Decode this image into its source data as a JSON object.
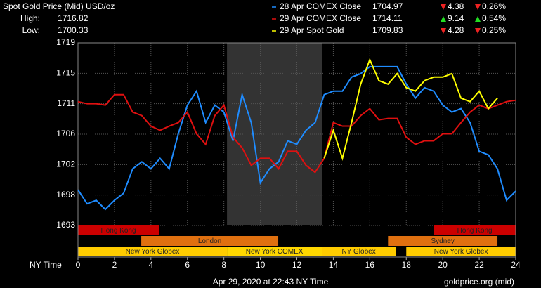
{
  "chart_data": {
    "type": "line",
    "title": "Spot Gold Price (Mid) USD/oz",
    "high_label": "High:",
    "high": 1716.82,
    "low_label": "Low:",
    "low": 1700.33,
    "xlabel": "NY Time",
    "footer": "Apr 29, 2020 at 22:43 NY Time",
    "source": "goldprice.org (mid)",
    "x": [
      0,
      0.5,
      1,
      1.5,
      2,
      2.5,
      3,
      3.5,
      4,
      4.5,
      5,
      5.5,
      6,
      6.5,
      7,
      7.5,
      8,
      8.5,
      9,
      9.5,
      10,
      10.5,
      11,
      11.5,
      12,
      12.5,
      13,
      13.5,
      14,
      14.5,
      15,
      15.5,
      16,
      16.5,
      17,
      17.5,
      18,
      18.5,
      19,
      19.5,
      20,
      20.5,
      21,
      21.5,
      22,
      22.5,
      23,
      23.5,
      24
    ],
    "xlim": [
      0,
      24
    ],
    "xticks": [
      0,
      2,
      4,
      6,
      8,
      10,
      12,
      14,
      16,
      18,
      20,
      22,
      24
    ],
    "ylim": [
      1693.3,
      1719.4
    ],
    "yticks": [
      {
        "value": 1693.3,
        "label": "1693"
      },
      {
        "value": 1697.65,
        "label": "1698"
      },
      {
        "value": 1702,
        "label": "1702"
      },
      {
        "value": 1706.35,
        "label": "1706"
      },
      {
        "value": 1710.7,
        "label": "1711"
      },
      {
        "value": 1715.05,
        "label": "1715"
      },
      {
        "value": 1719.4,
        "label": "1719"
      }
    ],
    "grid": true,
    "shaded": [
      8.17,
      13.37
    ],
    "series": [
      {
        "name": "28 Apr COMEX Close",
        "color": "#1f8cff",
        "close": 1704.97,
        "change": 4.38,
        "change_pct": {
          "value": 0.26,
          "label": "0.26%"
        },
        "direction": "down",
        "values": [
          1698.4,
          1696.4,
          1696.9,
          1695.6,
          1696.9,
          1697.9,
          1701.4,
          1702.4,
          1701.4,
          1702.9,
          1701.4,
          1706.4,
          1710.5,
          1712.5,
          1708.0,
          1710.5,
          1709.5,
          1705.4,
          1712.0,
          1708.0,
          1699.4,
          1701.4,
          1702.4,
          1705.4,
          1704.9,
          1706.9,
          1708.0,
          1712.0,
          1712.5,
          1712.5,
          1714.5,
          1715.0,
          1716.0,
          1716.0,
          1716.0,
          1716.0,
          1713.5,
          1711.5,
          1713.0,
          1712.5,
          1710.5,
          1709.5,
          1710.0,
          1708.0,
          1703.9,
          1703.4,
          1701.4,
          1696.9,
          1698.2
        ]
      },
      {
        "name": "29 Apr COMEX Close",
        "color": "#e01010",
        "close": 1714.11,
        "change": 9.14,
        "change_pct": {
          "value": 0.54,
          "label": "0.54%"
        },
        "direction": "up",
        "values": [
          1711.0,
          1710.7,
          1710.7,
          1710.5,
          1712.0,
          1712.0,
          1709.5,
          1709.0,
          1707.5,
          1706.9,
          1707.5,
          1708.0,
          1709.5,
          1706.4,
          1704.9,
          1709.0,
          1710.5,
          1705.9,
          1704.4,
          1701.9,
          1702.9,
          1702.9,
          1701.4,
          1703.9,
          1703.9,
          1701.9,
          1700.9,
          1702.9,
          1708.0,
          1707.5,
          1707.5,
          1709.0,
          1710.0,
          1708.4,
          1708.6,
          1708.6,
          1705.9,
          1704.9,
          1705.4,
          1705.4,
          1706.4,
          1706.4,
          1708.0,
          1709.5,
          1710.5,
          1710.0,
          1710.5,
          1711.0,
          1711.2
        ]
      },
      {
        "name": "29 Apr Spot Gold",
        "color": "#ffff00",
        "close": 1709.83,
        "change": 4.28,
        "change_pct": {
          "value": 0.25,
          "label": "0.25%"
        },
        "direction": "down",
        "values": [
          null,
          null,
          null,
          null,
          null,
          null,
          null,
          null,
          null,
          null,
          null,
          null,
          null,
          null,
          null,
          null,
          null,
          null,
          null,
          null,
          null,
          null,
          null,
          null,
          null,
          null,
          null,
          1702.9,
          1706.9,
          1702.9,
          1708.0,
          1713.5,
          1717.0,
          1714.0,
          1713.5,
          1715.0,
          1713.0,
          1712.5,
          1714.0,
          1714.5,
          1714.5,
          1715.0,
          1711.5,
          1711.0,
          1712.5,
          1710.0,
          1711.5,
          null,
          null
        ]
      }
    ],
    "sessions": [
      [
        {
          "name": "Hong Kong",
          "start": 0,
          "end": 4.43,
          "color": "#cc0000"
        },
        {
          "name": "Hong Kong",
          "start": 19.5,
          "end": 24,
          "color": "#cc0000"
        }
      ],
      [
        {
          "name": "London",
          "start": 3.47,
          "end": 10.98,
          "color": "#e07010"
        },
        {
          "name": "Sydney",
          "start": 17,
          "end": 23,
          "color": "#e07010"
        }
      ],
      [
        {
          "name": "New York Globex",
          "start": 0,
          "end": 8.17,
          "color": "#ffcc00"
        },
        {
          "name": "New York COMEX",
          "start": 8.17,
          "end": 13.37,
          "color": "#ffd700"
        },
        {
          "name": "NY Globex",
          "start": 13.37,
          "end": 17.42,
          "color": "#ffcc00"
        },
        {
          "name": "New York Globex",
          "start": 18,
          "end": 24,
          "color": "#ffcc00"
        }
      ]
    ]
  }
}
